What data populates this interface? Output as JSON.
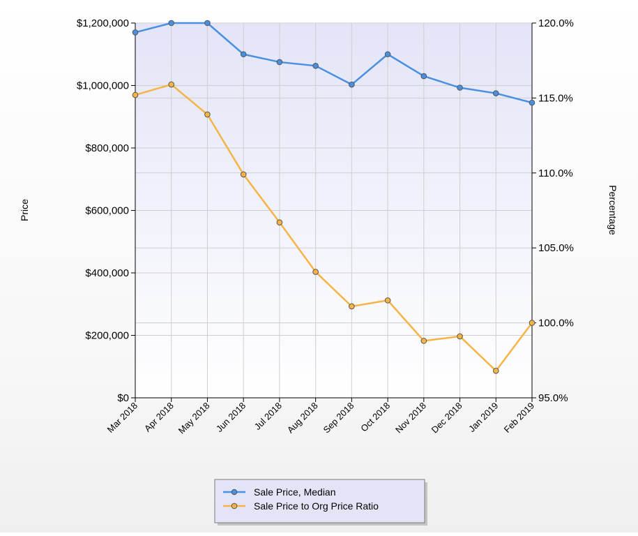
{
  "chart_data": {
    "type": "line",
    "categories": [
      "Mar 2018",
      "Apr 2018",
      "May 2018",
      "Jun 2018",
      "Jul 2018",
      "Aug 2018",
      "Sep 2018",
      "Oct 2018",
      "Nov 2018",
      "Dec 2018",
      "Jan 2019",
      "Feb 2019"
    ],
    "series": [
      {
        "name": "Sale Price, Median",
        "axis": "left",
        "color": "#4a90e2",
        "values": [
          1170000,
          1200000,
          1200000,
          1100000,
          1075000,
          1063000,
          1003000,
          1100000,
          1030000,
          993000,
          975000,
          945000
        ]
      },
      {
        "name": "Sale Price to Org Price Ratio",
        "axis": "right",
        "color": "#f5b445",
        "values": [
          115.2,
          115.9,
          113.9,
          109.9,
          106.7,
          103.4,
          101.1,
          101.5,
          98.8,
          99.1,
          96.8,
          100.0
        ]
      }
    ],
    "ylabel": "Price",
    "y2label": "Percentage",
    "ylim": [
      0,
      1200000
    ],
    "y2lim": [
      95,
      120
    ],
    "yticks": [
      "$0",
      "$200,000",
      "$400,000",
      "$600,000",
      "$800,000",
      "$1,000,000",
      "$1,200,000"
    ],
    "y2ticks": [
      "95.0%",
      "100.0%",
      "105.0%",
      "110.0%",
      "115.0%",
      "120.0%"
    ],
    "grid": true,
    "legend_position": "bottom-center"
  }
}
